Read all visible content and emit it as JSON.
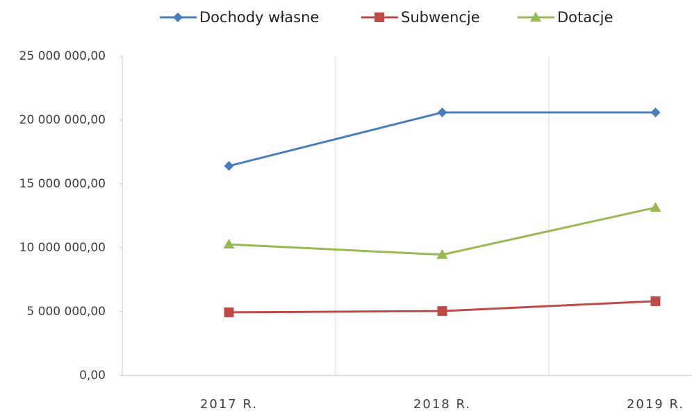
{
  "chart_data": {
    "type": "line",
    "categories": [
      "2017 R.",
      "2018 R.",
      "2019 R."
    ],
    "series": [
      {
        "name": "Dochody własne",
        "color": "#4a7ebb",
        "marker": "diamond",
        "values": [
          16410000,
          20600000,
          20600000
        ]
      },
      {
        "name": "Subwencje",
        "color": "#be4b48",
        "marker": "square",
        "values": [
          4950000,
          5050000,
          5820000
        ]
      },
      {
        "name": "Dotacje",
        "color": "#98b954",
        "marker": "triangle",
        "values": [
          10270000,
          9460000,
          13150000
        ]
      }
    ],
    "ylim": [
      0,
      25000000
    ],
    "yticks": [
      {
        "value": 0,
        "label": "0,00"
      },
      {
        "value": 5000000,
        "label": "5 000 000,00"
      },
      {
        "value": 10000000,
        "label": "10 000 000,00"
      },
      {
        "value": 15000000,
        "label": "15 000 000,00"
      },
      {
        "value": 20000000,
        "label": "20 000 000,00"
      },
      {
        "value": 25000000,
        "label": "25 000 000,00"
      }
    ],
    "legend": "top",
    "grid": "vertical"
  }
}
